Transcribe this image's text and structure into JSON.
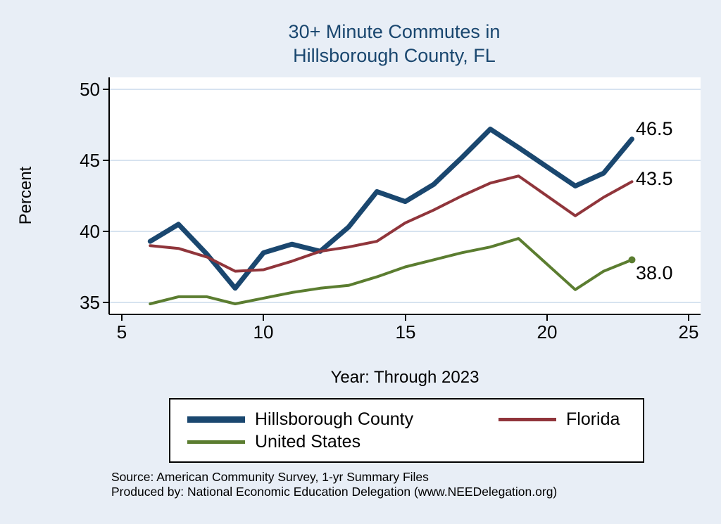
{
  "title": {
    "line1": "30+ Minute Commutes in",
    "line2": "Hillsborough County, FL"
  },
  "axes": {
    "ylabel": "Percent",
    "xlabel": "Year: Through 2023"
  },
  "end_labels": {
    "hillsborough": "46.5",
    "florida": "43.5",
    "united_states": "38.0"
  },
  "legend": {
    "items": [
      {
        "label": "Hillsborough County",
        "color": "#1a476f"
      },
      {
        "label": "Florida",
        "color": "#90353b"
      },
      {
        "label": "United States",
        "color": "#5b7d30"
      }
    ]
  },
  "source": {
    "line1": "Source: American Community Survey, 1-yr Summary Files",
    "line2": "Produced by: National Economic Education Delegation (www.NEEDelegation.org)"
  },
  "chart_data": {
    "type": "line",
    "title": "30+ Minute Commutes in Hillsborough County, FL",
    "xlabel": "Year: Through 2023",
    "ylabel": "Percent",
    "grid": "horizontal",
    "legend_position": "bottom",
    "xlim": [
      5,
      25
    ],
    "ylim": [
      34,
      51
    ],
    "xticks": [
      5,
      10,
      15,
      20,
      25
    ],
    "yticks": [
      35,
      40,
      45,
      50
    ],
    "x": [
      6,
      7,
      8,
      9,
      10,
      11,
      12,
      13,
      14,
      15,
      16,
      17,
      18,
      19,
      21,
      22,
      23
    ],
    "series": [
      {
        "name": "Hillsborough County",
        "color": "#1a476f",
        "width": 7,
        "values": [
          39.3,
          40.5,
          38.4,
          36.0,
          38.5,
          39.1,
          38.6,
          40.3,
          42.8,
          42.1,
          43.3,
          45.2,
          47.2,
          45.9,
          43.2,
          44.1,
          46.5
        ]
      },
      {
        "name": "Florida",
        "color": "#90353b",
        "width": 4,
        "values": [
          39.0,
          38.8,
          38.2,
          37.2,
          37.3,
          37.9,
          38.6,
          38.9,
          39.3,
          40.6,
          41.5,
          42.5,
          43.4,
          43.9,
          41.1,
          42.4,
          43.5
        ]
      },
      {
        "name": "United States",
        "color": "#5b7d30",
        "width": 4,
        "end_marker": true,
        "values": [
          34.9,
          35.4,
          35.4,
          34.9,
          35.3,
          35.7,
          36.0,
          36.2,
          36.8,
          37.5,
          38.0,
          38.5,
          38.9,
          39.5,
          35.9,
          37.2,
          38.0
        ]
      }
    ]
  }
}
